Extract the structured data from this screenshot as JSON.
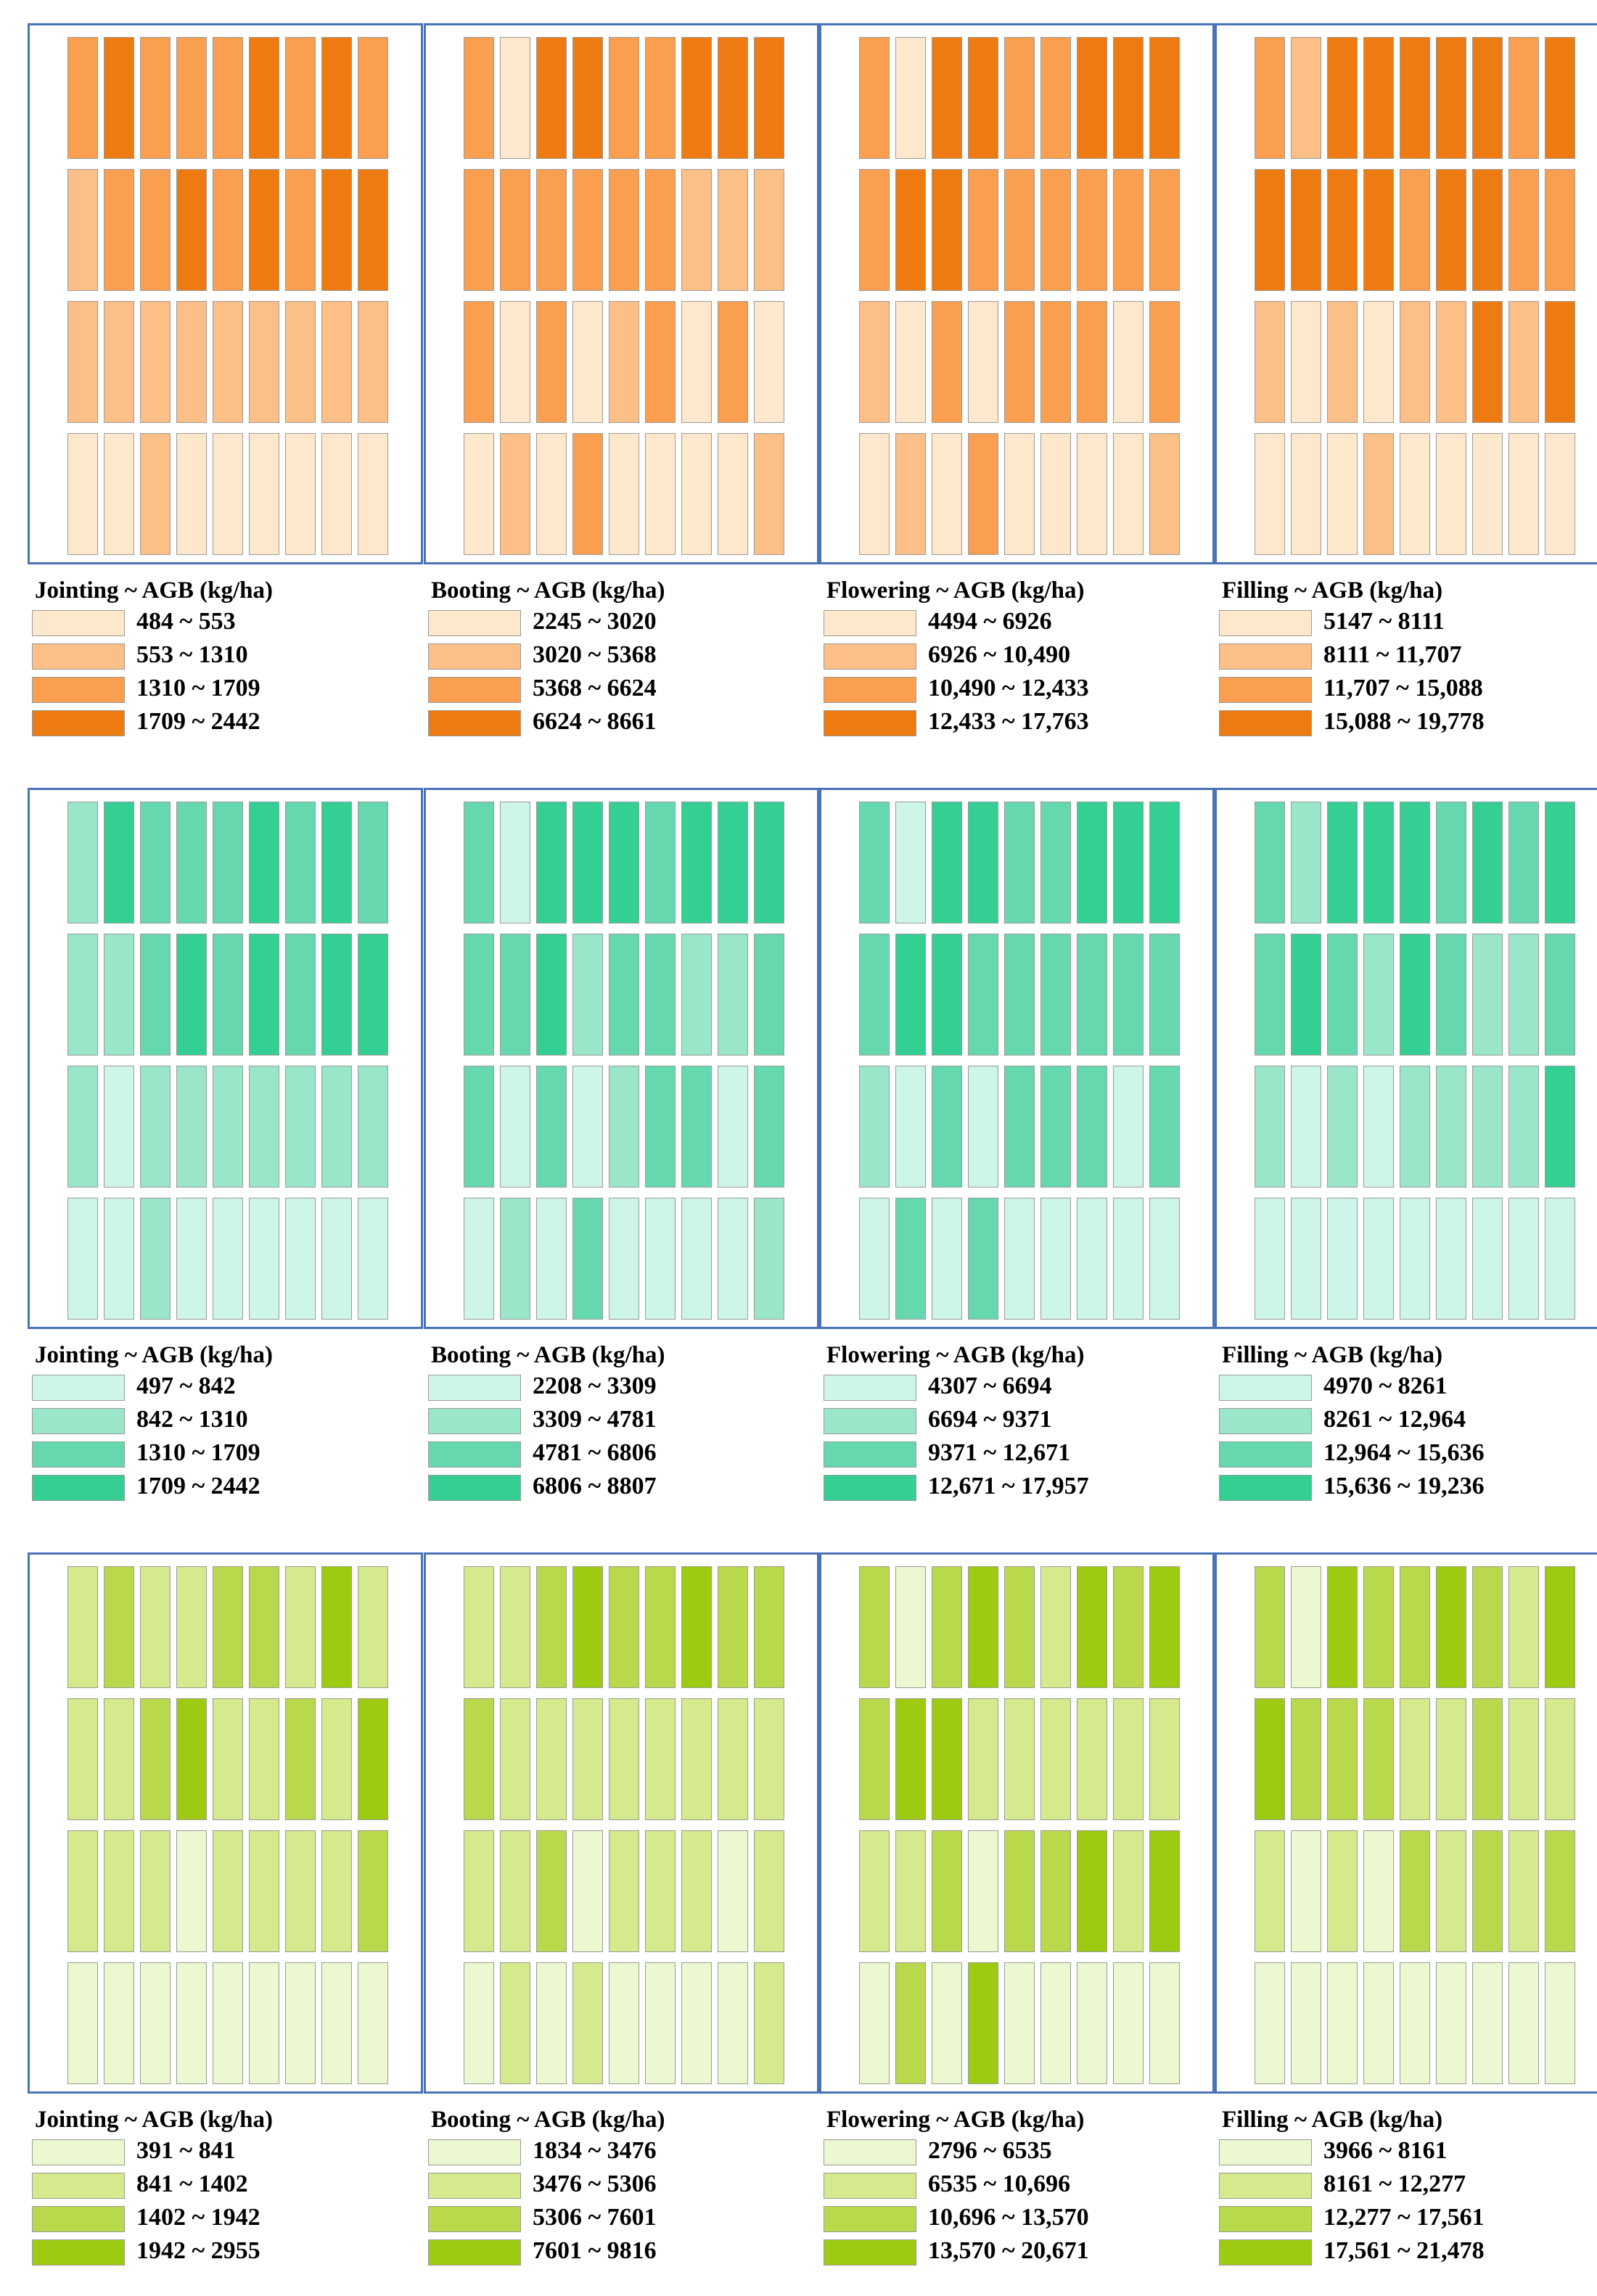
{
  "chart_data": [
    {
      "type": "heatmap",
      "stage": "Jointing",
      "title": "Jointing ~ AGB (kg/ha)",
      "palette": "orange",
      "legend": [
        "484 ~ 553",
        "553 ~ 1310",
        "1310 ~ 1709",
        "1709 ~ 2442"
      ],
      "class_grid": [
        [
          2,
          3,
          2,
          2,
          2,
          3,
          2,
          3,
          2
        ],
        [
          1,
          2,
          2,
          3,
          2,
          3,
          2,
          3,
          3
        ],
        [
          1,
          1,
          1,
          1,
          1,
          1,
          1,
          1,
          1
        ],
        [
          0,
          0,
          1,
          0,
          0,
          0,
          0,
          0,
          0
        ]
      ]
    },
    {
      "type": "heatmap",
      "stage": "Booting",
      "title": "Booting ~ AGB (kg/ha)",
      "palette": "orange",
      "legend": [
        "2245 ~ 3020",
        "3020 ~ 5368",
        "5368 ~ 6624",
        "6624 ~ 8661"
      ],
      "class_grid": [
        [
          2,
          0,
          3,
          3,
          2,
          2,
          3,
          3,
          3
        ],
        [
          2,
          2,
          2,
          2,
          2,
          2,
          1,
          1,
          1
        ],
        [
          2,
          0,
          2,
          0,
          1,
          2,
          0,
          2,
          0
        ],
        [
          0,
          1,
          0,
          2,
          0,
          0,
          0,
          0,
          1
        ]
      ]
    },
    {
      "type": "heatmap",
      "stage": "Flowering",
      "title": "Flowering ~ AGB (kg/ha)",
      "palette": "orange",
      "legend": [
        "4494 ~ 6926",
        "6926 ~ 10,490",
        "10,490 ~ 12,433",
        "12,433 ~ 17,763"
      ],
      "class_grid": [
        [
          2,
          0,
          3,
          3,
          2,
          2,
          3,
          3,
          3
        ],
        [
          2,
          3,
          3,
          2,
          2,
          2,
          2,
          2,
          2
        ],
        [
          1,
          0,
          2,
          0,
          2,
          2,
          2,
          0,
          2
        ],
        [
          0,
          1,
          0,
          2,
          0,
          0,
          0,
          0,
          1
        ]
      ]
    },
    {
      "type": "heatmap",
      "stage": "Filling",
      "title": "Filling ~ AGB (kg/ha)",
      "palette": "orange",
      "legend": [
        "5147 ~ 8111",
        "8111 ~ 11,707",
        "11,707 ~ 15,088",
        "15,088 ~ 19,778"
      ],
      "class_grid": [
        [
          2,
          1,
          3,
          3,
          3,
          3,
          3,
          2,
          3
        ],
        [
          3,
          3,
          3,
          3,
          2,
          3,
          3,
          2,
          2
        ],
        [
          1,
          0,
          1,
          0,
          1,
          1,
          3,
          1,
          3
        ],
        [
          0,
          0,
          0,
          1,
          0,
          0,
          0,
          0,
          0
        ]
      ]
    },
    {
      "type": "heatmap",
      "stage": "Jointing",
      "title": "Jointing ~ AGB (kg/ha)",
      "palette": "teal",
      "legend": [
        "497 ~ 842",
        "842 ~ 1310",
        "1310 ~ 1709",
        "1709 ~ 2442"
      ],
      "class_grid": [
        [
          1,
          3,
          2,
          2,
          2,
          3,
          2,
          3,
          2
        ],
        [
          1,
          1,
          2,
          3,
          2,
          3,
          2,
          3,
          3
        ],
        [
          1,
          0,
          1,
          1,
          1,
          1,
          1,
          1,
          1
        ],
        [
          0,
          0,
          1,
          0,
          0,
          0,
          0,
          0,
          0
        ]
      ]
    },
    {
      "type": "heatmap",
      "stage": "Booting",
      "title": "Booting ~ AGB (kg/ha)",
      "palette": "teal",
      "legend": [
        "2208 ~ 3309",
        "3309 ~ 4781",
        "4781 ~ 6806",
        "6806 ~ 8807"
      ],
      "class_grid": [
        [
          2,
          0,
          3,
          3,
          3,
          2,
          3,
          3,
          3
        ],
        [
          2,
          2,
          3,
          1,
          2,
          2,
          1,
          1,
          2
        ],
        [
          2,
          0,
          2,
          0,
          1,
          2,
          2,
          0,
          2
        ],
        [
          0,
          1,
          0,
          2,
          0,
          0,
          0,
          0,
          1
        ]
      ]
    },
    {
      "type": "heatmap",
      "stage": "Flowering",
      "title": "Flowering ~ AGB (kg/ha)",
      "palette": "teal",
      "legend": [
        "4307 ~ 6694",
        "6694 ~ 9371",
        "9371 ~ 12,671",
        "12,671 ~ 17,957"
      ],
      "class_grid": [
        [
          2,
          0,
          3,
          3,
          2,
          2,
          3,
          3,
          3
        ],
        [
          2,
          3,
          3,
          2,
          2,
          2,
          2,
          2,
          2
        ],
        [
          1,
          0,
          2,
          0,
          2,
          2,
          2,
          0,
          2
        ],
        [
          0,
          2,
          0,
          2,
          0,
          0,
          0,
          0,
          0
        ]
      ]
    },
    {
      "type": "heatmap",
      "stage": "Filling",
      "title": "Filling ~ AGB (kg/ha)",
      "palette": "teal",
      "legend": [
        "4970 ~ 8261",
        "8261 ~ 12,964",
        "12,964 ~ 15,636",
        "15,636 ~ 19,236"
      ],
      "class_grid": [
        [
          2,
          1,
          3,
          3,
          3,
          2,
          3,
          2,
          3
        ],
        [
          2,
          3,
          2,
          1,
          3,
          2,
          1,
          1,
          2
        ],
        [
          1,
          0,
          1,
          0,
          1,
          1,
          1,
          1,
          3
        ],
        [
          0,
          0,
          0,
          0,
          0,
          0,
          0,
          0,
          0
        ]
      ]
    },
    {
      "type": "heatmap",
      "stage": "Jointing",
      "title": "Jointing ~ AGB (kg/ha)",
      "palette": "green",
      "legend": [
        "391 ~ 841",
        "841 ~ 1402",
        "1402 ~ 1942",
        "1942 ~ 2955"
      ],
      "class_grid": [
        [
          1,
          2,
          1,
          1,
          2,
          2,
          1,
          3,
          1
        ],
        [
          1,
          1,
          2,
          3,
          1,
          1,
          2,
          1,
          3
        ],
        [
          1,
          1,
          1,
          0,
          1,
          1,
          1,
          1,
          2
        ],
        [
          0,
          0,
          0,
          0,
          0,
          0,
          0,
          0,
          0
        ]
      ]
    },
    {
      "type": "heatmap",
      "stage": "Booting",
      "title": "Booting ~ AGB (kg/ha)",
      "palette": "green",
      "legend": [
        "1834 ~ 3476",
        "3476 ~ 5306",
        "5306 ~ 7601",
        "7601 ~ 9816"
      ],
      "class_grid": [
        [
          1,
          1,
          2,
          3,
          2,
          2,
          3,
          2,
          2
        ],
        [
          2,
          1,
          1,
          1,
          1,
          1,
          1,
          1,
          1
        ],
        [
          1,
          1,
          2,
          0,
          1,
          1,
          1,
          0,
          1
        ],
        [
          0,
          1,
          0,
          1,
          0,
          0,
          0,
          0,
          1
        ]
      ]
    },
    {
      "type": "heatmap",
      "stage": "Flowering",
      "title": "Flowering ~ AGB (kg/ha)",
      "palette": "green",
      "legend": [
        "2796 ~ 6535",
        "6535 ~ 10,696",
        "10,696 ~ 13,570",
        "13,570 ~ 20,671"
      ],
      "class_grid": [
        [
          2,
          0,
          2,
          3,
          2,
          1,
          3,
          2,
          3
        ],
        [
          2,
          3,
          3,
          1,
          1,
          1,
          1,
          1,
          1
        ],
        [
          1,
          1,
          2,
          0,
          2,
          2,
          3,
          1,
          3
        ],
        [
          0,
          2,
          0,
          3,
          0,
          0,
          0,
          0,
          0
        ]
      ]
    },
    {
      "type": "heatmap",
      "stage": "Filling",
      "title": "Filling ~ AGB (kg/ha)",
      "palette": "green",
      "legend": [
        "3966 ~ 8161",
        "8161 ~ 12,277",
        "12,277 ~ 17,561",
        "17,561 ~ 21,478"
      ],
      "class_grid": [
        [
          2,
          0,
          3,
          2,
          2,
          3,
          2,
          1,
          3
        ],
        [
          3,
          2,
          2,
          2,
          1,
          1,
          2,
          1,
          1
        ],
        [
          1,
          0,
          1,
          0,
          2,
          1,
          2,
          1,
          2
        ],
        [
          0,
          0,
          0,
          0,
          0,
          0,
          0,
          0,
          0
        ]
      ]
    }
  ],
  "palettes": {
    "orange": [
      "#fee8cb",
      "#fcbf87",
      "#f99f4f",
      "#ee7b12"
    ],
    "teal": [
      "#cef5ea",
      "#99e6c9",
      "#66d8ae",
      "#34cf92"
    ],
    "green": [
      "#ecf8cf",
      "#d4ea8c",
      "#b9d94d",
      "#9dcb12"
    ]
  }
}
